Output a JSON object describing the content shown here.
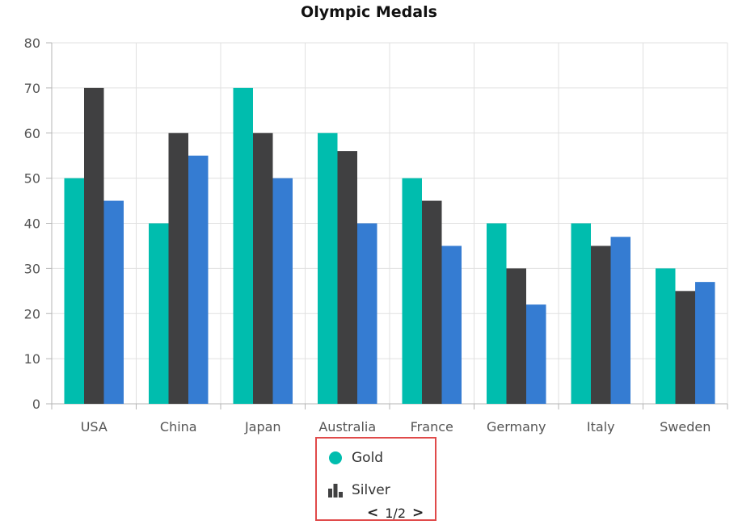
{
  "chart_data": {
    "type": "bar",
    "title": "Olympic Medals",
    "categories": [
      "USA",
      "China",
      "Japan",
      "Australia",
      "France",
      "Germany",
      "Italy",
      "Sweden"
    ],
    "series": [
      {
        "name": "Gold",
        "color": "#00bdae",
        "values": [
          50,
          40,
          70,
          60,
          50,
          40,
          40,
          30
        ]
      },
      {
        "name": "Silver",
        "color": "#404041",
        "values": [
          70,
          60,
          60,
          56,
          45,
          30,
          35,
          25
        ]
      },
      {
        "values": [
          45,
          55,
          50,
          40,
          35,
          22,
          37,
          27
        ],
        "color": "#357cd2"
      }
    ],
    "ylim": [
      0,
      80
    ],
    "yticks": [
      "0",
      "10",
      "20",
      "30",
      "40",
      "50",
      "60",
      "70",
      "80"
    ],
    "grid": true,
    "legend_position": "bottom"
  },
  "legend": {
    "items": [
      {
        "label": "Gold",
        "icon": "circle-icon",
        "color": "#00bdae"
      },
      {
        "label": "Silver",
        "icon": "column-chart-icon",
        "color": "#404041"
      }
    ],
    "page_text": "1/2",
    "prev_icon": "chevron-left-icon",
    "next_icon": "chevron-right-icon"
  }
}
